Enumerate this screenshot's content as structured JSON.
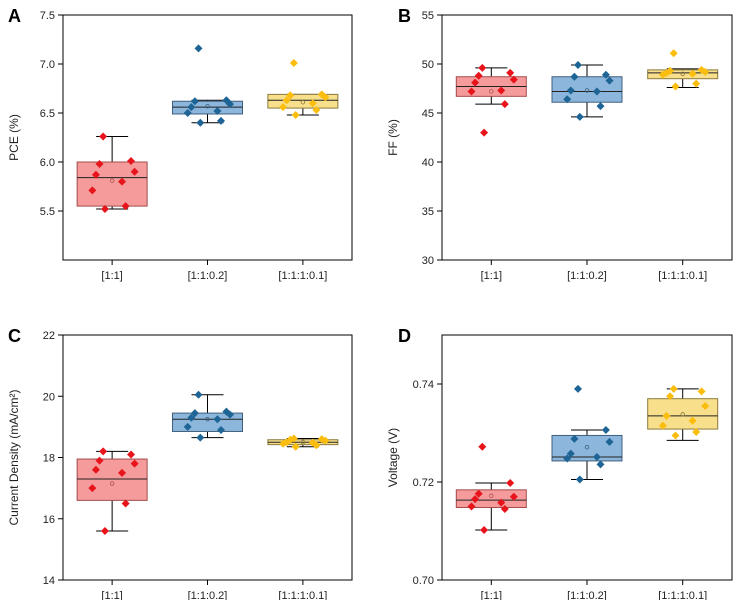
{
  "chart_data": [
    {
      "type": "box",
      "panel_letter": "A",
      "title": "",
      "xlabel": "",
      "ylabel": "PCE (%)",
      "ylim": [
        5.0,
        7.5
      ],
      "yticks": [
        5.5,
        6.0,
        6.5,
        7.0,
        7.5
      ],
      "ytick_labels": [
        "5.5",
        "6.0",
        "6.5",
        "7.0",
        "7.5"
      ],
      "categories": [
        "[1:1]",
        "[1:1:0.2]",
        "[1:1:1:0.1]"
      ],
      "boxes": [
        {
          "whisker_low": 5.52,
          "q1": 5.55,
          "median": 5.84,
          "q3": 6.0,
          "whisker_high": 6.26,
          "mean": 5.81,
          "points": [
            5.52,
            5.55,
            5.71,
            5.8,
            5.87,
            5.9,
            5.98,
            6.01,
            6.26
          ]
        },
        {
          "whisker_low": 6.4,
          "q1": 6.49,
          "median": 6.56,
          "q3": 6.62,
          "whisker_high": 6.63,
          "mean": 6.57,
          "points": [
            6.4,
            6.42,
            6.5,
            6.52,
            6.56,
            6.59,
            6.62,
            6.63,
            7.16
          ]
        },
        {
          "whisker_low": 6.48,
          "q1": 6.55,
          "median": 6.63,
          "q3": 6.69,
          "whisker_high": 6.69,
          "mean": 6.61,
          "points": [
            6.48,
            6.53,
            6.56,
            6.6,
            6.63,
            6.66,
            6.68,
            6.69,
            7.01
          ]
        }
      ]
    },
    {
      "type": "box",
      "panel_letter": "B",
      "title": "",
      "xlabel": "",
      "ylabel": "FF (%)",
      "ylim": [
        30,
        55
      ],
      "yticks": [
        30,
        35,
        40,
        45,
        50,
        55
      ],
      "ytick_labels": [
        "30",
        "35",
        "40",
        "45",
        "50",
        "55"
      ],
      "categories": [
        "[1:1]",
        "[1:1:0.2]",
        "[1:1:1:0.1]"
      ],
      "boxes": [
        {
          "whisker_low": 45.9,
          "q1": 46.7,
          "median": 47.7,
          "q3": 48.7,
          "whisker_high": 49.6,
          "mean": 47.2,
          "points": [
            43.0,
            45.9,
            47.2,
            47.3,
            48.1,
            48.4,
            48.8,
            49.1,
            49.6
          ]
        },
        {
          "whisker_low": 44.6,
          "q1": 46.1,
          "median": 47.2,
          "q3": 48.7,
          "whisker_high": 49.9,
          "mean": 47.3,
          "points": [
            44.6,
            45.7,
            46.4,
            47.2,
            47.3,
            48.3,
            48.7,
            48.9,
            49.9
          ]
        },
        {
          "whisker_low": 47.6,
          "q1": 48.5,
          "median": 49.1,
          "q3": 49.4,
          "whisker_high": 49.5,
          "mean": 49.0,
          "points": [
            47.7,
            48.0,
            48.9,
            49.0,
            49.1,
            49.2,
            49.3,
            49.4,
            51.1
          ]
        }
      ]
    },
    {
      "type": "box",
      "panel_letter": "C",
      "title": "",
      "xlabel": "",
      "ylabel": "Current Density (mA/cm²)",
      "ylim": [
        14,
        22
      ],
      "yticks": [
        14,
        16,
        18,
        20,
        22
      ],
      "ytick_labels": [
        "14",
        "16",
        "18",
        "20",
        "22"
      ],
      "categories": [
        "[1:1]",
        "[1:1:0.2]",
        "[1:1:1:0.1]"
      ],
      "boxes": [
        {
          "whisker_low": 15.6,
          "q1": 16.6,
          "median": 17.3,
          "q3": 17.95,
          "whisker_high": 18.2,
          "mean": 17.15,
          "points": [
            15.6,
            16.5,
            17.0,
            17.5,
            17.6,
            17.8,
            17.9,
            18.1,
            18.2
          ]
        },
        {
          "whisker_low": 18.65,
          "q1": 18.85,
          "median": 19.25,
          "q3": 19.45,
          "whisker_high": 20.05,
          "mean": 19.25,
          "points": [
            18.65,
            18.9,
            19.0,
            19.25,
            19.3,
            19.4,
            19.45,
            19.5,
            20.05
          ]
        },
        {
          "whisker_low": 18.35,
          "q1": 18.42,
          "median": 18.5,
          "q3": 18.58,
          "whisker_high": 18.62,
          "mean": 18.5,
          "points": [
            18.35,
            18.4,
            18.45,
            18.48,
            18.5,
            18.55,
            18.58,
            18.6,
            18.62
          ]
        }
      ]
    },
    {
      "type": "box",
      "panel_letter": "D",
      "title": "",
      "xlabel": "",
      "ylabel": "Voltage (V)",
      "ylim": [
        0.7,
        0.75
      ],
      "yticks": [
        0.7,
        0.72,
        0.74
      ],
      "ytick_labels": [
        "0.70",
        "0.72",
        "0.74"
      ],
      "categories": [
        "[1:1]",
        "[1:1:0.2]",
        "[1:1:1:0.1]"
      ],
      "boxes": [
        {
          "whisker_low": 0.7102,
          "q1": 0.7148,
          "median": 0.7163,
          "q3": 0.7184,
          "whisker_high": 0.7198,
          "mean": 0.7172,
          "points": [
            0.7102,
            0.7145,
            0.715,
            0.7158,
            0.7165,
            0.717,
            0.7176,
            0.7198,
            0.7272
          ]
        },
        {
          "whisker_low": 0.7205,
          "q1": 0.7243,
          "median": 0.7251,
          "q3": 0.7295,
          "whisker_high": 0.7306,
          "mean": 0.7271,
          "points": [
            0.7205,
            0.7236,
            0.7248,
            0.7251,
            0.7258,
            0.7282,
            0.7288,
            0.7306,
            0.739
          ]
        },
        {
          "whisker_low": 0.7285,
          "q1": 0.7308,
          "median": 0.7335,
          "q3": 0.737,
          "whisker_high": 0.739,
          "mean": 0.7338,
          "points": [
            0.7295,
            0.7302,
            0.7315,
            0.7325,
            0.7335,
            0.7355,
            0.7375,
            0.7385,
            0.739
          ]
        }
      ]
    }
  ],
  "palette": [
    {
      "fill": "#f59b9b",
      "edge": "#a24b4b",
      "point": "#e8141b",
      "mean": "#b05050"
    },
    {
      "fill": "#8cb6db",
      "edge": "#3f5f7d",
      "point": "#1e6495",
      "mean": "#3f5f7d"
    },
    {
      "fill": "#f8df8b",
      "edge": "#8a7a3a",
      "point": "#fbbd0e",
      "mean": "#8a7a3a"
    }
  ]
}
